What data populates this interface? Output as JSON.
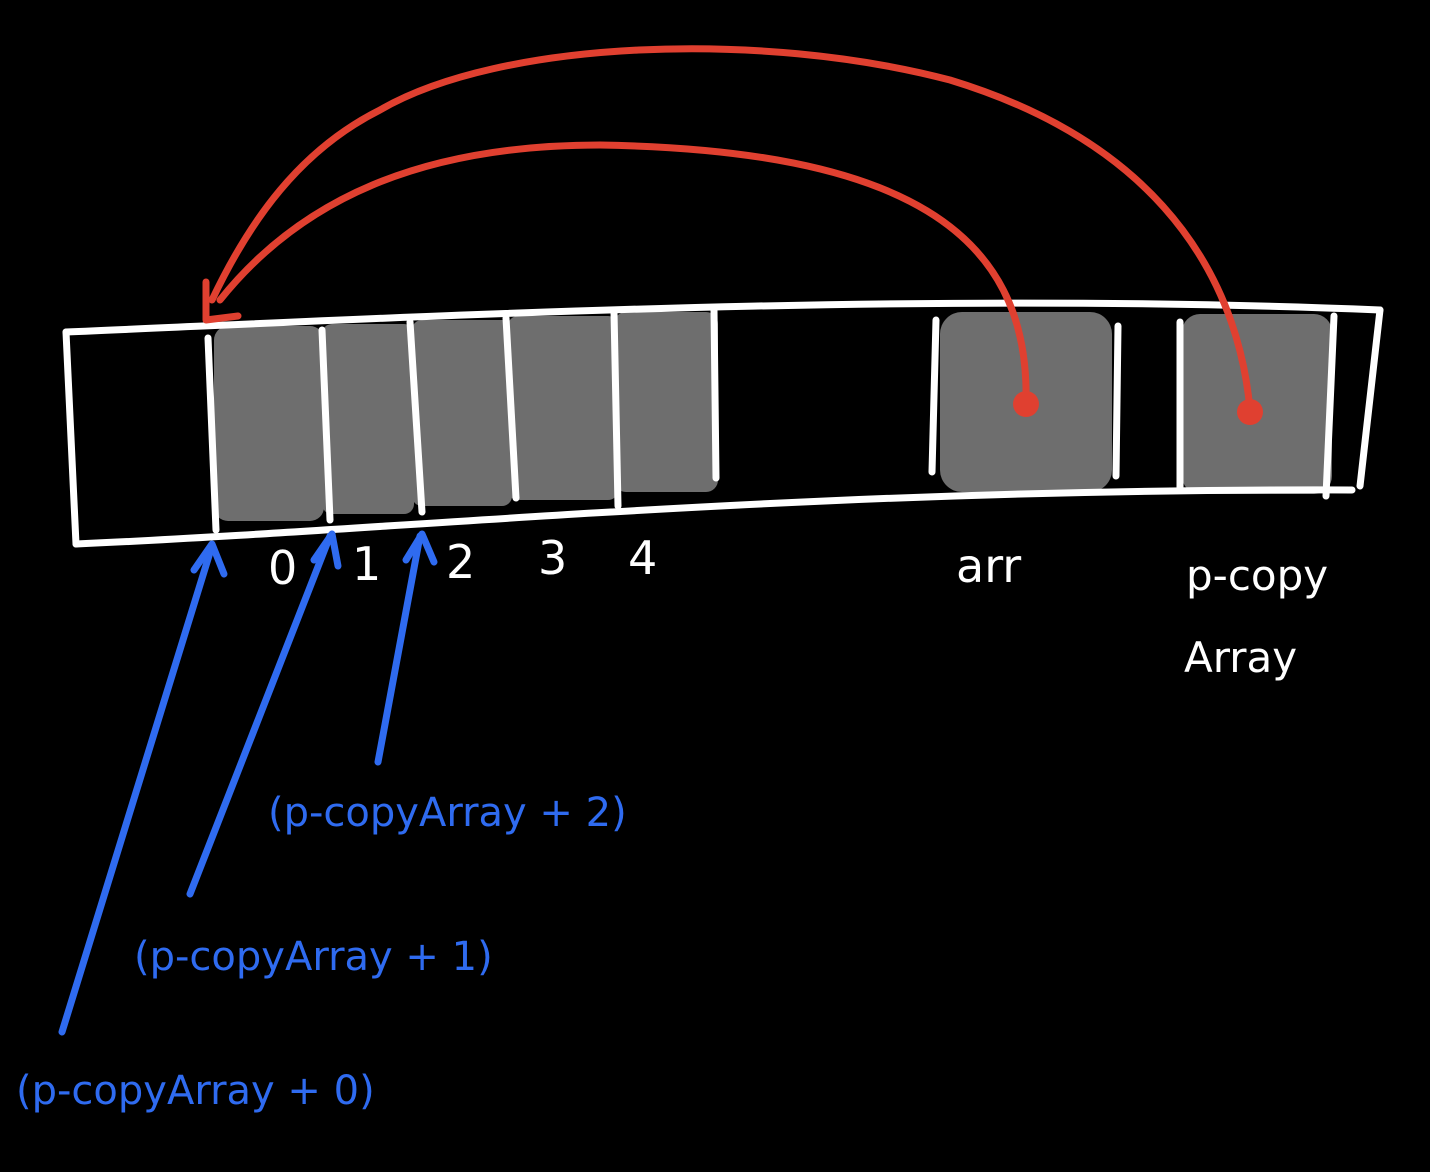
{
  "colors": {
    "background": "#000000",
    "outline": "#ffffff",
    "filled_cell": "#6e6e6e",
    "pointer_arrow": "#e04030",
    "offset_arrow": "#2f6bf0"
  },
  "index_labels": [
    "0",
    "1",
    "2",
    "3",
    "4"
  ],
  "variable_labels": {
    "arr": "arr",
    "p_copy_line1": "p-copy",
    "p_copy_line2": "Array"
  },
  "offset_labels": [
    "(p-copyArray + 0)",
    "(p-copyArray + 1)",
    "(p-copyArray + 2)"
  ]
}
